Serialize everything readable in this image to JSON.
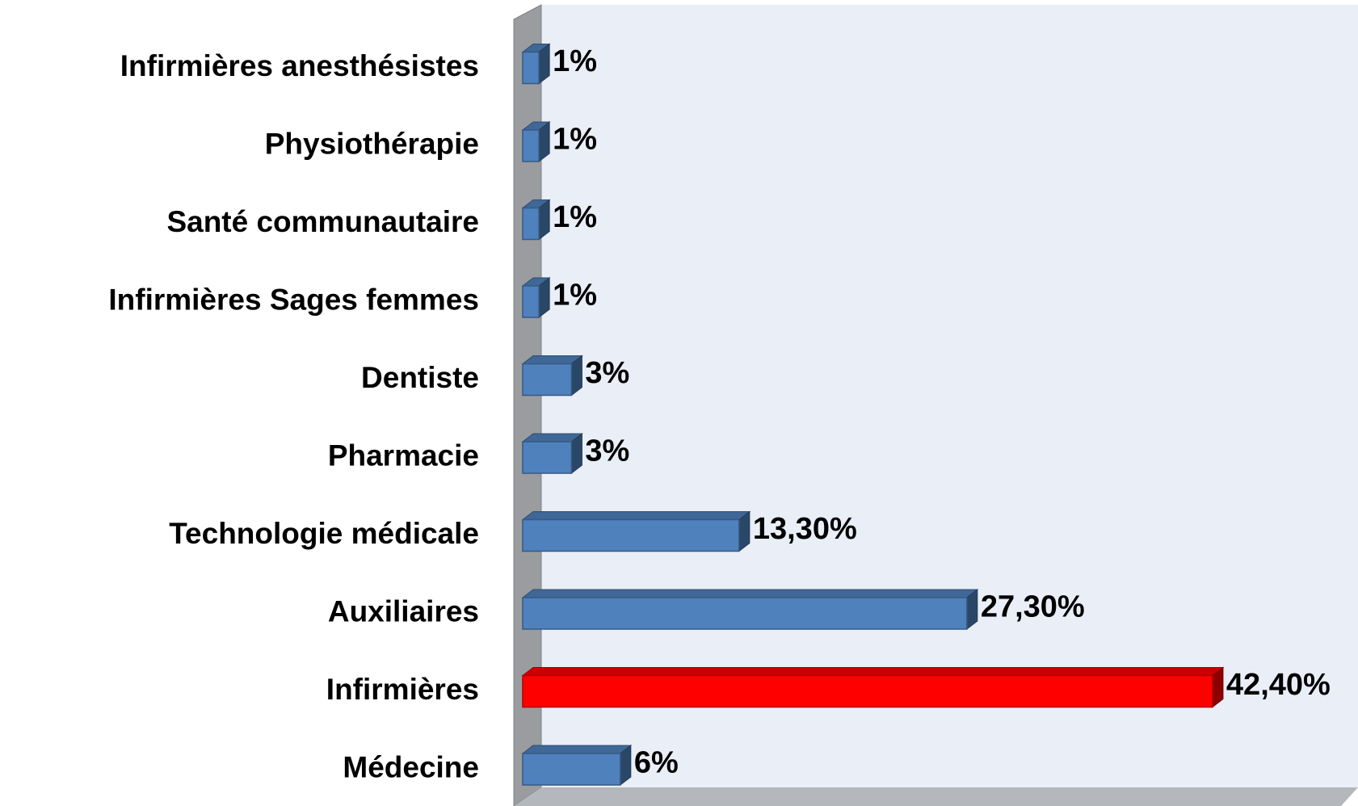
{
  "chart_data": {
    "type": "bar3d_horizontal",
    "categories": [
      "Infirmières anesthésistes",
      "Physiothérapie",
      "Santé communautaire",
      "Infirmières Sages femmes",
      "Dentiste",
      "Pharmacie",
      "Technologie médicale",
      "Auxiliaires",
      "Infirmières",
      "Médecine"
    ],
    "values": [
      1,
      1,
      1,
      1,
      3,
      3,
      13.3,
      27.3,
      42.4,
      6
    ],
    "value_labels": [
      "1%",
      "1%",
      "1%",
      "1%",
      "3%",
      "3%",
      "13,30%",
      "27,30%",
      "42,40%",
      "6%"
    ],
    "colors": [
      "#4f81bd",
      "#4f81bd",
      "#4f81bd",
      "#4f81bd",
      "#4f81bd",
      "#4f81bd",
      "#4f81bd",
      "#4f81bd",
      "#ff0000",
      "#4f81bd"
    ],
    "xlim": [
      0,
      50
    ]
  }
}
